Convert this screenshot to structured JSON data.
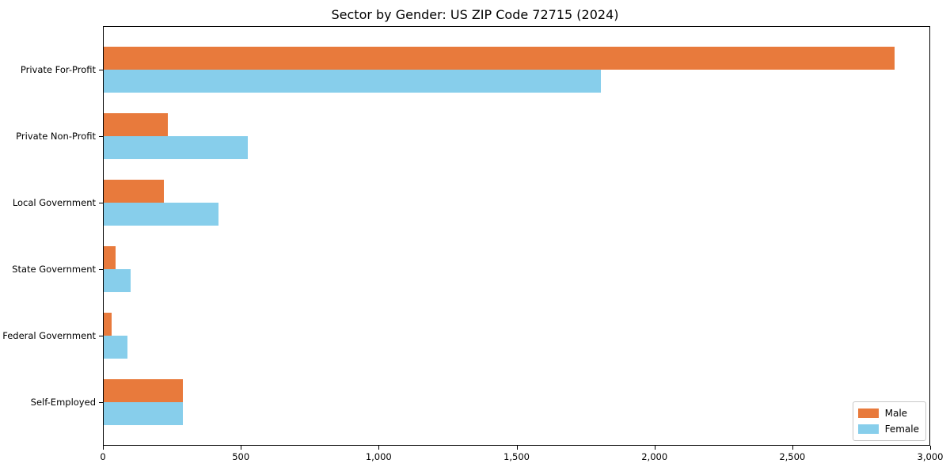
{
  "chart_data": {
    "type": "bar",
    "orientation": "horizontal",
    "title": "Sector by Gender: US ZIP Code 72715 (2024)",
    "xlabel": "",
    "ylabel": "",
    "categories": [
      "Private For-Profit",
      "Private Non-Profit",
      "Local Government",
      "State Government",
      "Federal Government",
      "Self-Employed"
    ],
    "series": [
      {
        "name": "Male",
        "color": "#e87a3c",
        "values": [
          2870,
          235,
          220,
          45,
          30,
          290
        ]
      },
      {
        "name": "Female",
        "color": "#87ceeb",
        "values": [
          1805,
          525,
          420,
          100,
          90,
          290
        ]
      }
    ],
    "xlim": [
      0,
      3000
    ],
    "xticks": [
      0,
      500,
      1000,
      1500,
      2000,
      2500,
      3000
    ],
    "xtick_labels": [
      "0",
      "500",
      "1,000",
      "1,500",
      "2,000",
      "2,500",
      "3,000"
    ],
    "grid": false,
    "legend": {
      "position": "lower right",
      "entries": [
        "Male",
        "Female"
      ]
    }
  }
}
